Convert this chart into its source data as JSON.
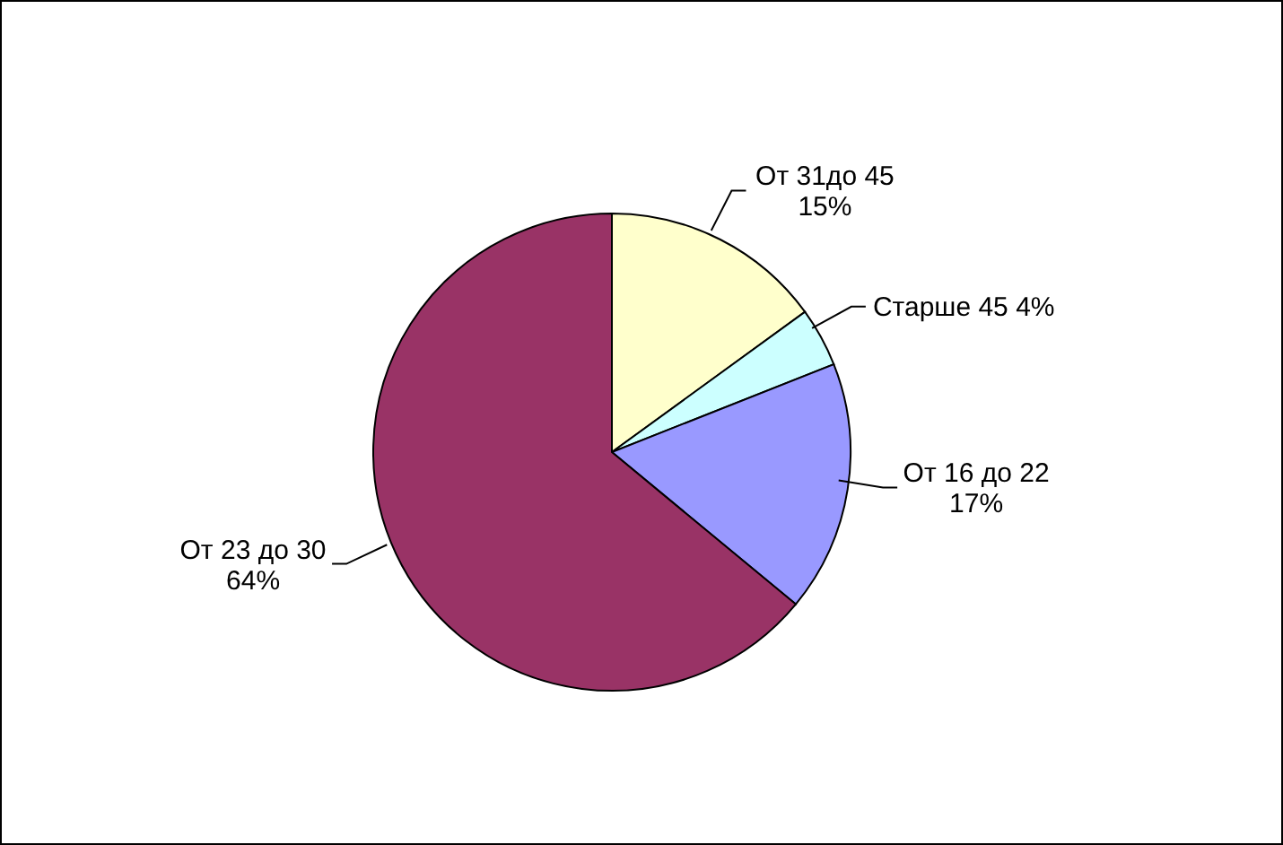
{
  "chart_data": {
    "type": "pie",
    "categories": [
      "От 31до 45",
      "Старше 45",
      "От 16 до 22",
      "От 23 до 30"
    ],
    "values": [
      15,
      4,
      17,
      64
    ],
    "value_labels": [
      "15%",
      "4%",
      "17%",
      "64%"
    ],
    "colors": [
      "#ffffcc",
      "#ccffff",
      "#9999ff",
      "#993366"
    ],
    "legend": false
  }
}
